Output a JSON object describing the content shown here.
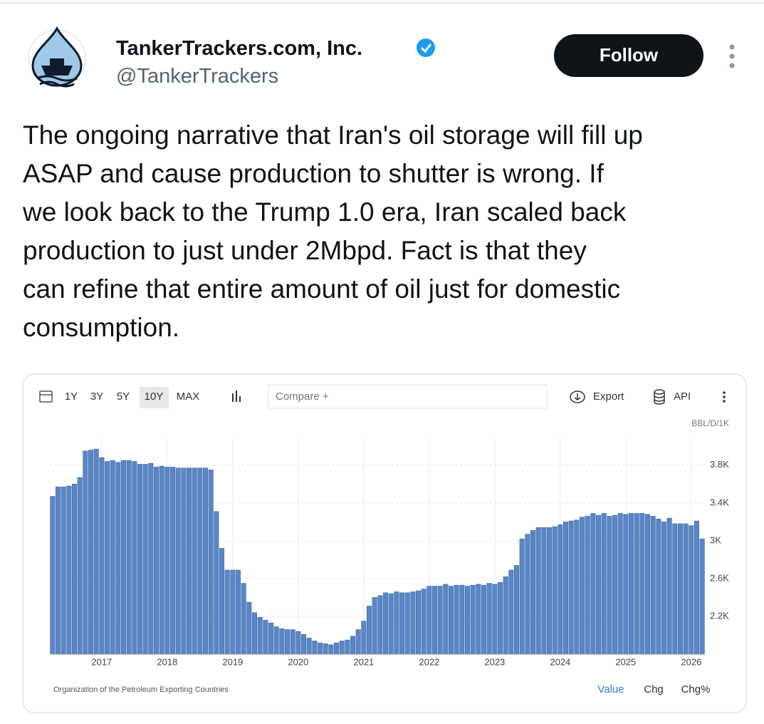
{
  "tweet": {
    "name": "TankerTrackers.com, Inc.",
    "handle": "@TankerTrackers",
    "follow": "Follow",
    "text": [
      "The ongoing narrative that Iran's oil storage will fill up",
      "ASAP and cause production to shutter is wrong. If",
      "we look back to the Trump 1.0 era, Iran scaled back",
      "production to just under 2Mbpd. Fact is that they",
      "can refine that entire amount of oil just for domestic",
      "consumption."
    ]
  },
  "toolbar": {
    "ranges": [
      "1Y",
      "3Y",
      "5Y",
      "10Y",
      "MAX"
    ],
    "compare": "Compare +",
    "export": "Export",
    "api": "API"
  },
  "footer": {
    "source": "Organization of the Petroleum Exporting Countries",
    "views": [
      "Value",
      "Chg",
      "Chg%"
    ]
  },
  "chart_data": {
    "type": "bar",
    "y_unit": "BBL/D/1K",
    "color": "#5a86c6",
    "grid": true,
    "ylim": [
      1800,
      4070
    ],
    "yticks": [
      {
        "value": 2200,
        "label": "2.2K"
      },
      {
        "value": 2600,
        "label": "2.6K"
      },
      {
        "value": 3000,
        "label": "3K"
      },
      {
        "value": 3400,
        "label": "3.4K"
      },
      {
        "value": 3800,
        "label": "3.8K"
      }
    ],
    "categories": [
      null,
      null,
      null,
      null,
      null,
      null,
      null,
      null,
      null,
      "2017",
      null,
      null,
      null,
      null,
      null,
      null,
      null,
      null,
      null,
      null,
      null,
      "2018",
      null,
      null,
      null,
      null,
      null,
      null,
      null,
      null,
      null,
      null,
      null,
      "2019",
      null,
      null,
      null,
      null,
      null,
      null,
      null,
      null,
      null,
      null,
      null,
      "2020",
      null,
      null,
      null,
      null,
      null,
      null,
      null,
      null,
      null,
      null,
      null,
      "2021",
      null,
      null,
      null,
      null,
      null,
      null,
      null,
      null,
      null,
      null,
      null,
      "2022",
      null,
      null,
      null,
      null,
      null,
      null,
      null,
      null,
      null,
      null,
      null,
      "2023",
      null,
      null,
      null,
      null,
      null,
      null,
      null,
      null,
      null,
      null,
      null,
      "2024",
      null,
      null,
      null,
      null,
      null,
      null,
      null,
      null,
      null,
      null,
      null,
      "2025",
      null,
      null,
      null,
      null,
      null,
      null,
      null,
      null,
      null,
      null,
      null,
      "2026",
      null,
      null
    ],
    "values": [
      3470,
      3570,
      3570,
      3580,
      3600,
      3670,
      3950,
      3960,
      3970,
      3880,
      3840,
      3850,
      3830,
      3850,
      3850,
      3840,
      3810,
      3810,
      3820,
      3780,
      3790,
      3780,
      3780,
      3770,
      3770,
      3770,
      3770,
      3770,
      3770,
      3750,
      3310,
      2920,
      2690,
      2690,
      2690,
      2550,
      2350,
      2240,
      2190,
      2160,
      2130,
      2090,
      2070,
      2060,
      2060,
      2040,
      2010,
      1970,
      1940,
      1920,
      1910,
      1900,
      1920,
      1940,
      1950,
      1990,
      2060,
      2150,
      2310,
      2400,
      2420,
      2450,
      2440,
      2460,
      2450,
      2450,
      2460,
      2470,
      2490,
      2520,
      2520,
      2520,
      2540,
      2520,
      2530,
      2530,
      2520,
      2530,
      2540,
      2530,
      2550,
      2540,
      2560,
      2620,
      2690,
      2740,
      3020,
      3070,
      3110,
      3140,
      3140,
      3140,
      3150,
      3170,
      3200,
      3210,
      3220,
      3250,
      3260,
      3290,
      3270,
      3290,
      3260,
      3270,
      3290,
      3280,
      3290,
      3290,
      3290,
      3280,
      3260,
      3230,
      3200,
      3240,
      3180,
      3180,
      3180,
      3160,
      3210,
      3020
    ]
  }
}
